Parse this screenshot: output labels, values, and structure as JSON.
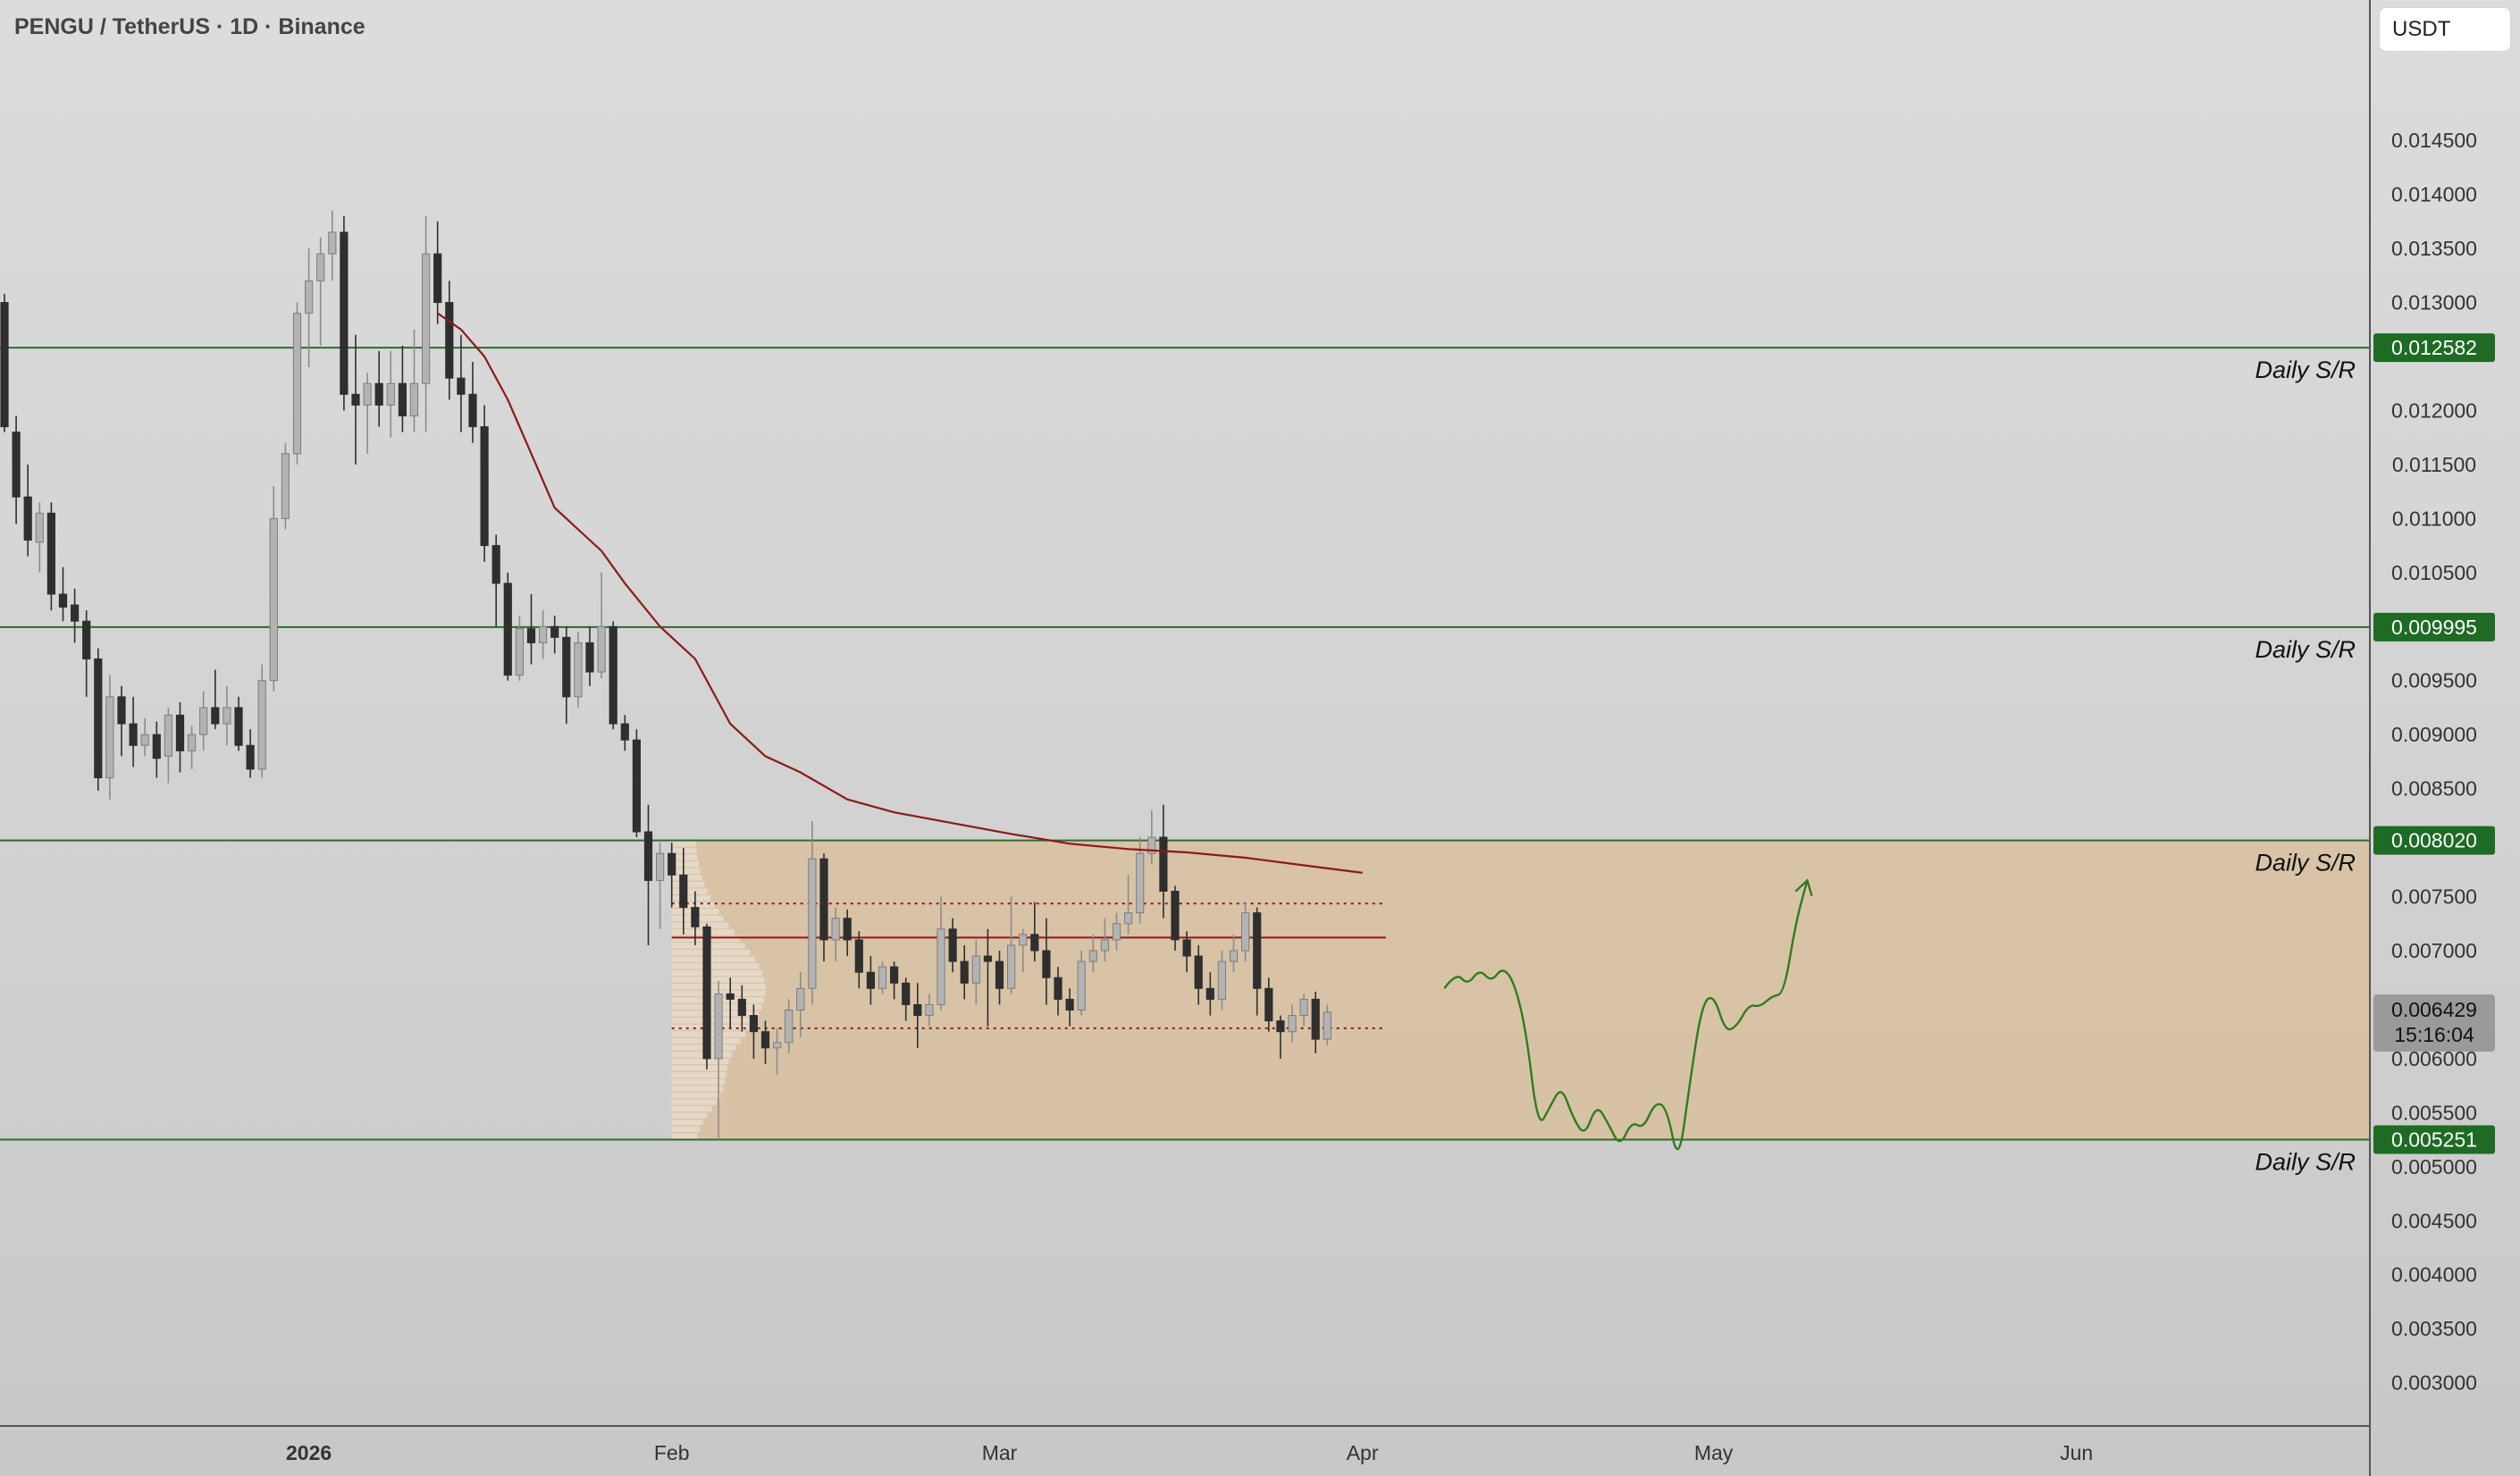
{
  "header": {
    "symbol": "PENGU / TetherUS · 1D · Binance",
    "currency": "USDT"
  },
  "colors": {
    "level_line": "#2e6b2e",
    "level_label_bg": "#1e6b24",
    "moving_average": "#8b1a1a",
    "range_zone": "#d9bf9b",
    "candle_up": "#b3b3b3",
    "candle_down": "#2f2f2f",
    "projection": "#2e7d1f",
    "current_price_bg": "#9a9a9a"
  },
  "chart_data": {
    "type": "candlestick",
    "timeframe": "1D",
    "x_start_date": "2025-12-06",
    "x_ticks": [
      {
        "label": "2026",
        "date": "2026-01-01"
      },
      {
        "label": "Feb",
        "date": "2026-02-01"
      },
      {
        "label": "Mar",
        "date": "2026-03-01"
      },
      {
        "label": "Apr",
        "date": "2026-04-01"
      },
      {
        "label": "May",
        "date": "2026-05-01"
      },
      {
        "label": "Jun",
        "date": "2026-06-01"
      }
    ],
    "ylim": [
      0.0026,
      0.0158
    ],
    "y_ticks": [
      "0.003000",
      "0.003500",
      "0.004000",
      "0.004500",
      "0.005000",
      "0.005500",
      "0.006000",
      "0.006500",
      "0.007000",
      "0.007500",
      "0.008000",
      "0.008500",
      "0.009000",
      "0.009500",
      "0.010000",
      "0.010500",
      "0.011000",
      "0.011500",
      "0.012000",
      "0.012500",
      "0.013000",
      "0.013500",
      "0.014000",
      "0.014500"
    ],
    "hidden_y_ticks": [
      "0.006500",
      "0.008000",
      "0.010000",
      "0.012500"
    ],
    "levels": [
      {
        "value": "0.012582",
        "label": "Daily S/R"
      },
      {
        "value": "0.009995",
        "label": "Daily S/R"
      },
      {
        "value": "0.008020",
        "label": "Daily S/R"
      },
      {
        "value": "0.005251",
        "label": "Daily S/R"
      }
    ],
    "range_zone": {
      "top": 0.00802,
      "bottom": 0.005251,
      "start": "2026-02-01"
    },
    "internal_lines": [
      {
        "value": 0.007436,
        "style": "dotted"
      },
      {
        "value": 0.007121,
        "style": "solid"
      },
      {
        "value": 0.006282,
        "style": "dotted"
      }
    ],
    "current_price": {
      "value": "0.006429",
      "countdown": "15:16:04"
    },
    "moving_average": [
      [
        "2026-01-12",
        0.0129
      ],
      [
        "2026-01-14",
        0.01275
      ],
      [
        "2026-01-16",
        0.0125
      ],
      [
        "2026-01-18",
        0.0121
      ],
      [
        "2026-01-20",
        0.0116
      ],
      [
        "2026-01-22",
        0.0111
      ],
      [
        "2026-01-24",
        0.0109
      ],
      [
        "2026-01-26",
        0.0107
      ],
      [
        "2026-01-28",
        0.0104
      ],
      [
        "2026-01-31",
        0.01
      ],
      [
        "2026-02-03",
        0.0097
      ],
      [
        "2026-02-06",
        0.0091
      ],
      [
        "2026-02-09",
        0.0088
      ],
      [
        "2026-02-12",
        0.00865
      ],
      [
        "2026-02-16",
        0.0084
      ],
      [
        "2026-02-20",
        0.00828
      ],
      [
        "2026-02-25",
        0.00818
      ],
      [
        "2026-03-02",
        0.00808
      ],
      [
        "2026-03-07",
        0.00799
      ],
      [
        "2026-03-12",
        0.00794
      ],
      [
        "2026-03-17",
        0.00791
      ],
      [
        "2026-03-22",
        0.00786
      ],
      [
        "2026-03-27",
        0.00779
      ],
      [
        "2026-04-01",
        0.00772
      ]
    ],
    "candles": [
      [
        "2025-12-06",
        0.013,
        0.01308,
        0.0118,
        0.01185
      ],
      [
        "2025-12-07",
        0.0118,
        0.01195,
        0.01095,
        0.0112
      ],
      [
        "2025-12-08",
        0.0112,
        0.0115,
        0.01065,
        0.0108
      ],
      [
        "2025-12-09",
        0.01078,
        0.01115,
        0.0105,
        0.01105
      ],
      [
        "2025-12-10",
        0.01105,
        0.01115,
        0.01015,
        0.0103
      ],
      [
        "2025-12-11",
        0.0103,
        0.01055,
        0.01005,
        0.01018
      ],
      [
        "2025-12-12",
        0.0102,
        0.01035,
        0.00985,
        0.01005
      ],
      [
        "2025-12-13",
        0.01005,
        0.01015,
        0.00935,
        0.0097
      ],
      [
        "2025-12-14",
        0.0097,
        0.0098,
        0.00848,
        0.0086
      ],
      [
        "2025-12-15",
        0.0086,
        0.00955,
        0.0084,
        0.00935
      ],
      [
        "2025-12-16",
        0.00935,
        0.00945,
        0.0088,
        0.0091
      ],
      [
        "2025-12-17",
        0.0091,
        0.00935,
        0.0087,
        0.0089
      ],
      [
        "2025-12-18",
        0.0089,
        0.00915,
        0.0088,
        0.009
      ],
      [
        "2025-12-19",
        0.009,
        0.00912,
        0.0086,
        0.00878
      ],
      [
        "2025-12-20",
        0.0088,
        0.00925,
        0.00855,
        0.00918
      ],
      [
        "2025-12-21",
        0.00918,
        0.0093,
        0.00865,
        0.00885
      ],
      [
        "2025-12-22",
        0.00885,
        0.00908,
        0.00868,
        0.009
      ],
      [
        "2025-12-23",
        0.009,
        0.0094,
        0.00885,
        0.00925
      ],
      [
        "2025-12-24",
        0.00925,
        0.0096,
        0.00905,
        0.0091
      ],
      [
        "2025-12-25",
        0.0091,
        0.00945,
        0.0089,
        0.00925
      ],
      [
        "2025-12-26",
        0.00925,
        0.00935,
        0.00885,
        0.0089
      ],
      [
        "2025-12-27",
        0.0089,
        0.00905,
        0.0086,
        0.00868
      ],
      [
        "2025-12-28",
        0.00868,
        0.00965,
        0.0086,
        0.0095
      ],
      [
        "2025-12-29",
        0.0095,
        0.0113,
        0.0094,
        0.011
      ],
      [
        "2025-12-30",
        0.011,
        0.0117,
        0.0109,
        0.0116
      ],
      [
        "2025-12-31",
        0.0116,
        0.013,
        0.0115,
        0.0129
      ],
      [
        "2026-01-01",
        0.0129,
        0.0135,
        0.0124,
        0.0132
      ],
      [
        "2026-01-02",
        0.0132,
        0.0136,
        0.0126,
        0.01345
      ],
      [
        "2026-01-03",
        0.01345,
        0.01385,
        0.0132,
        0.01365
      ],
      [
        "2026-01-04",
        0.01365,
        0.0138,
        0.012,
        0.01215
      ],
      [
        "2026-01-05",
        0.01215,
        0.0127,
        0.0115,
        0.01205
      ],
      [
        "2026-01-06",
        0.01205,
        0.01235,
        0.0116,
        0.01225
      ],
      [
        "2026-01-07",
        0.01225,
        0.01255,
        0.01185,
        0.01205
      ],
      [
        "2026-01-08",
        0.01205,
        0.01255,
        0.01175,
        0.01225
      ],
      [
        "2026-01-09",
        0.01225,
        0.0126,
        0.0118,
        0.01195
      ],
      [
        "2026-01-10",
        0.01195,
        0.01275,
        0.0118,
        0.01225
      ],
      [
        "2026-01-11",
        0.01225,
        0.0138,
        0.0118,
        0.01345
      ],
      [
        "2026-01-12",
        0.01345,
        0.01375,
        0.0128,
        0.013
      ],
      [
        "2026-01-13",
        0.013,
        0.0132,
        0.0121,
        0.0123
      ],
      [
        "2026-01-14",
        0.0123,
        0.0127,
        0.0118,
        0.01215
      ],
      [
        "2026-01-15",
        0.01215,
        0.01245,
        0.0117,
        0.01185
      ],
      [
        "2026-01-16",
        0.01185,
        0.01205,
        0.0106,
        0.01075
      ],
      [
        "2026-01-17",
        0.01075,
        0.01085,
        0.01,
        0.0104
      ],
      [
        "2026-01-18",
        0.0104,
        0.0105,
        0.0095,
        0.00955
      ],
      [
        "2026-01-19",
        0.00955,
        0.0101,
        0.0095,
        0.00998
      ],
      [
        "2026-01-20",
        0.00998,
        0.0103,
        0.00965,
        0.00985
      ],
      [
        "2026-01-21",
        0.00985,
        0.01015,
        0.0097,
        0.01
      ],
      [
        "2026-01-22",
        0.01,
        0.0101,
        0.00975,
        0.0099
      ],
      [
        "2026-01-23",
        0.0099,
        0.01,
        0.0091,
        0.00935
      ],
      [
        "2026-01-24",
        0.00935,
        0.00995,
        0.00925,
        0.00985
      ],
      [
        "2026-01-25",
        0.00985,
        0.01,
        0.00945,
        0.00958
      ],
      [
        "2026-01-26",
        0.00958,
        0.0105,
        0.00952,
        0.01
      ],
      [
        "2026-01-27",
        0.01,
        0.01005,
        0.00905,
        0.0091
      ],
      [
        "2026-01-28",
        0.0091,
        0.00918,
        0.00885,
        0.00895
      ],
      [
        "2026-01-29",
        0.00895,
        0.00905,
        0.00805,
        0.0081
      ],
      [
        "2026-01-30",
        0.0081,
        0.00835,
        0.00705,
        0.00765
      ],
      [
        "2026-01-31",
        0.00765,
        0.008,
        0.0072,
        0.0079
      ],
      [
        "2026-02-01",
        0.0079,
        0.008,
        0.0074,
        0.0077
      ],
      [
        "2026-02-02",
        0.0077,
        0.00795,
        0.00715,
        0.0074
      ],
      [
        "2026-02-03",
        0.0074,
        0.00755,
        0.00705,
        0.00722
      ],
      [
        "2026-02-04",
        0.00722,
        0.00725,
        0.0059,
        0.006
      ],
      [
        "2026-02-05",
        0.006,
        0.00672,
        0.00525,
        0.0066
      ],
      [
        "2026-02-06",
        0.0066,
        0.00675,
        0.00628,
        0.00655
      ],
      [
        "2026-02-07",
        0.00655,
        0.00668,
        0.00625,
        0.0064
      ],
      [
        "2026-02-08",
        0.0064,
        0.0065,
        0.006,
        0.00625
      ],
      [
        "2026-02-09",
        0.00625,
        0.00635,
        0.00595,
        0.0061
      ],
      [
        "2026-02-10",
        0.0061,
        0.00628,
        0.00585,
        0.00615
      ],
      [
        "2026-02-11",
        0.00615,
        0.00655,
        0.00605,
        0.00645
      ],
      [
        "2026-02-12",
        0.00645,
        0.0068,
        0.0062,
        0.00665
      ],
      [
        "2026-02-13",
        0.00665,
        0.0082,
        0.0065,
        0.00785
      ],
      [
        "2026-02-14",
        0.00785,
        0.0079,
        0.0069,
        0.0071
      ],
      [
        "2026-02-15",
        0.0071,
        0.0074,
        0.0069,
        0.0073
      ],
      [
        "2026-02-16",
        0.0073,
        0.00738,
        0.00695,
        0.0071
      ],
      [
        "2026-02-17",
        0.0071,
        0.00718,
        0.00665,
        0.0068
      ],
      [
        "2026-02-18",
        0.0068,
        0.00695,
        0.0065,
        0.00665
      ],
      [
        "2026-02-19",
        0.00665,
        0.0069,
        0.0066,
        0.00685
      ],
      [
        "2026-02-20",
        0.00685,
        0.0069,
        0.00655,
        0.0067
      ],
      [
        "2026-02-21",
        0.0067,
        0.00675,
        0.00635,
        0.0065
      ],
      [
        "2026-02-22",
        0.0065,
        0.0067,
        0.0061,
        0.0064
      ],
      [
        "2026-02-23",
        0.0064,
        0.0066,
        0.0063,
        0.0065
      ],
      [
        "2026-02-24",
        0.0065,
        0.0075,
        0.00645,
        0.0072
      ],
      [
        "2026-02-25",
        0.0072,
        0.0073,
        0.0068,
        0.0069
      ],
      [
        "2026-02-26",
        0.0069,
        0.00705,
        0.00655,
        0.0067
      ],
      [
        "2026-02-27",
        0.0067,
        0.0071,
        0.0065,
        0.00695
      ],
      [
        "2026-02-28",
        0.00695,
        0.0072,
        0.0063,
        0.0069
      ],
      [
        "2026-03-01",
        0.0069,
        0.007,
        0.0065,
        0.00665
      ],
      [
        "2026-03-02",
        0.00665,
        0.0075,
        0.0066,
        0.00705
      ],
      [
        "2026-03-03",
        0.00705,
        0.0072,
        0.0068,
        0.00715
      ],
      [
        "2026-03-04",
        0.00715,
        0.00745,
        0.0069,
        0.007
      ],
      [
        "2026-03-05",
        0.007,
        0.0073,
        0.0065,
        0.00675
      ],
      [
        "2026-03-06",
        0.00675,
        0.00685,
        0.0064,
        0.00655
      ],
      [
        "2026-03-07",
        0.00655,
        0.00665,
        0.0063,
        0.00645
      ],
      [
        "2026-03-08",
        0.00645,
        0.007,
        0.0064,
        0.0069
      ],
      [
        "2026-03-09",
        0.0069,
        0.00715,
        0.0068,
        0.007
      ],
      [
        "2026-03-10",
        0.007,
        0.0073,
        0.0069,
        0.0071
      ],
      [
        "2026-03-11",
        0.0071,
        0.00735,
        0.007,
        0.00725
      ],
      [
        "2026-03-12",
        0.00725,
        0.0077,
        0.00715,
        0.00735
      ],
      [
        "2026-03-13",
        0.00735,
        0.00805,
        0.00725,
        0.0079
      ],
      [
        "2026-03-14",
        0.0079,
        0.0083,
        0.0078,
        0.00805
      ],
      [
        "2026-03-15",
        0.00805,
        0.00835,
        0.0073,
        0.00755
      ],
      [
        "2026-03-16",
        0.00755,
        0.0076,
        0.007,
        0.0071
      ],
      [
        "2026-03-17",
        0.0071,
        0.00718,
        0.0068,
        0.00695
      ],
      [
        "2026-03-18",
        0.00695,
        0.00705,
        0.0065,
        0.00665
      ],
      [
        "2026-03-19",
        0.00665,
        0.0068,
        0.0064,
        0.00655
      ],
      [
        "2026-03-20",
        0.00655,
        0.007,
        0.00645,
        0.0069
      ],
      [
        "2026-03-21",
        0.0069,
        0.00715,
        0.0068,
        0.007
      ],
      [
        "2026-03-22",
        0.007,
        0.00745,
        0.0069,
        0.00735
      ],
      [
        "2026-03-23",
        0.00735,
        0.0074,
        0.0064,
        0.00665
      ],
      [
        "2026-03-24",
        0.00665,
        0.00675,
        0.00625,
        0.00635
      ],
      [
        "2026-03-25",
        0.00635,
        0.0064,
        0.006,
        0.00625
      ],
      [
        "2026-03-26",
        0.00625,
        0.0065,
        0.00615,
        0.0064
      ],
      [
        "2026-03-27",
        0.0064,
        0.0066,
        0.0063,
        0.00655
      ],
      [
        "2026-03-28",
        0.00655,
        0.00662,
        0.00605,
        0.00618
      ],
      [
        "2026-03-29",
        0.00618,
        0.0065,
        0.00612,
        0.00643
      ]
    ],
    "projection_path": [
      [
        "2026-04-08",
        0.00665
      ],
      [
        "2026-04-09",
        0.0068
      ],
      [
        "2026-04-10",
        0.00668
      ],
      [
        "2026-04-11",
        0.00683
      ],
      [
        "2026-04-12",
        0.00671
      ],
      [
        "2026-04-13",
        0.00685
      ],
      [
        "2026-04-14",
        0.0067
      ],
      [
        "2026-04-15",
        0.00625
      ],
      [
        "2026-04-16",
        0.00535
      ],
      [
        "2026-04-17",
        0.00555
      ],
      [
        "2026-04-18",
        0.00575
      ],
      [
        "2026-04-19",
        0.00545
      ],
      [
        "2026-04-20",
        0.00528
      ],
      [
        "2026-04-21",
        0.00558
      ],
      [
        "2026-04-22",
        0.0054
      ],
      [
        "2026-04-23",
        0.00518
      ],
      [
        "2026-04-24",
        0.00542
      ],
      [
        "2026-04-25",
        0.00535
      ],
      [
        "2026-04-26",
        0.0056
      ],
      [
        "2026-04-27",
        0.00555
      ],
      [
        "2026-04-28",
        0.005
      ],
      [
        "2026-04-29",
        0.0058
      ],
      [
        "2026-04-30",
        0.0065
      ],
      [
        "2026-05-01",
        0.0066
      ],
      [
        "2026-05-02",
        0.00625
      ],
      [
        "2026-05-03",
        0.0063
      ],
      [
        "2026-05-04",
        0.0065
      ],
      [
        "2026-05-05",
        0.00648
      ],
      [
        "2026-05-06",
        0.00658
      ],
      [
        "2026-05-07",
        0.0066
      ],
      [
        "2026-05-08",
        0.00725
      ],
      [
        "2026-05-09",
        0.00765
      ]
    ]
  }
}
